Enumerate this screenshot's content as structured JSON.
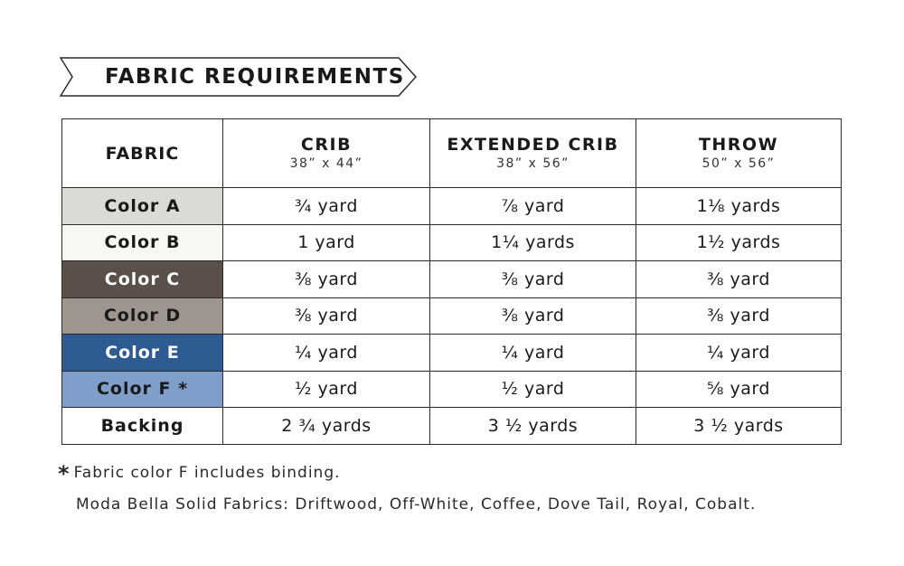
{
  "banner": {
    "title": "FABRIC REQUIREMENTS"
  },
  "colors": {
    "color_a": "#dcdad4",
    "color_b": "#f8f7f1",
    "color_c": "#5a4f49",
    "color_d": "#9d958e",
    "color_e": "#2d5b92",
    "color_f": "#7f9ec9",
    "backing": "#ffffff",
    "border": "#2a2a2a"
  },
  "table": {
    "header": {
      "fabric": "FABRIC",
      "columns": [
        {
          "name": "CRIB",
          "size": "38” x 44”"
        },
        {
          "name": "EXTENDED CRIB",
          "size": "38” x 56”"
        },
        {
          "name": "THROW",
          "size": "50” x 56”"
        }
      ]
    },
    "rows": [
      {
        "fabric": "Color A",
        "values": [
          "¾ yard",
          "⅞ yard",
          "1⅛ yards"
        ]
      },
      {
        "fabric": "Color B",
        "values": [
          "1 yard",
          "1¼ yards",
          "1½ yards"
        ]
      },
      {
        "fabric": "Color C",
        "values": [
          "⅜ yard",
          "⅜ yard",
          "⅜ yard"
        ]
      },
      {
        "fabric": "Color D",
        "values": [
          "⅜ yard",
          "⅜ yard",
          "⅜ yard"
        ]
      },
      {
        "fabric": "Color E",
        "values": [
          "¼ yard",
          "¼ yard",
          "¼ yard"
        ]
      },
      {
        "fabric": "Color F *",
        "values": [
          "½ yard",
          "½ yard",
          "⅝ yard"
        ]
      },
      {
        "fabric": "Backing",
        "values": [
          "2 ¾ yards",
          "3 ½ yards",
          "3 ½ yards"
        ]
      }
    ]
  },
  "notes": {
    "star": "*",
    "binding_note": "Fabric color F includes binding.",
    "fabrics_note": "Moda Bella Solid Fabrics: Driftwood, Off-White, Coffee, Dove Tail, Royal, Cobalt."
  }
}
